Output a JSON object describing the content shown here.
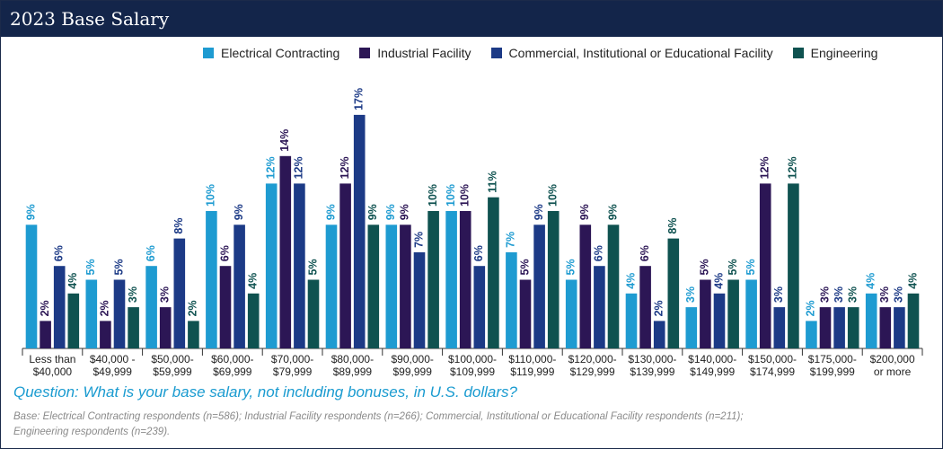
{
  "header": {
    "title": "2023 Base Salary"
  },
  "colors": {
    "header_bg": "#13254a",
    "question_text": "#1a9bd0",
    "note_text": "#8a8a8a"
  },
  "chart_data": {
    "type": "bar",
    "title": "2023 Base Salary",
    "xlabel": "",
    "ylabel": "",
    "ylim": [
      0,
      17
    ],
    "grid": false,
    "legend_position": "top-right",
    "value_suffix": "%",
    "categories": [
      [
        "Less than",
        "$40,000"
      ],
      [
        "$40,000 -",
        "$49,999"
      ],
      [
        "$50,000-",
        "$59,999"
      ],
      [
        "$60,000-",
        "$69,999"
      ],
      [
        "$70,000-",
        "$79,999"
      ],
      [
        "$80,000-",
        "$89,999"
      ],
      [
        "$90,000-",
        "$99,999"
      ],
      [
        "$100,000-",
        "$109,999"
      ],
      [
        "$110,000-",
        "$119,999"
      ],
      [
        "$120,000-",
        "$129,999"
      ],
      [
        "$130,000-",
        "$139,999"
      ],
      [
        "$140,000-",
        "$149,999"
      ],
      [
        "$150,000-",
        "$174,999"
      ],
      [
        "$175,000-",
        "$199,999"
      ],
      [
        "$200,000",
        "or more"
      ]
    ],
    "series": [
      {
        "name": "Electrical Contracting",
        "color": "#1e9bd1",
        "values": [
          9,
          5,
          6,
          10,
          12,
          9,
          9,
          10,
          7,
          5,
          4,
          3,
          5,
          2,
          4
        ]
      },
      {
        "name": "Industrial Facility",
        "color": "#2c1655",
        "values": [
          2,
          2,
          3,
          6,
          14,
          12,
          9,
          10,
          5,
          9,
          6,
          5,
          12,
          3,
          3
        ]
      },
      {
        "name": "Commercial, Institutional or Educational Facility",
        "color": "#1c3a86",
        "values": [
          6,
          5,
          8,
          9,
          12,
          17,
          7,
          6,
          9,
          6,
          2,
          4,
          3,
          3,
          3
        ]
      },
      {
        "name": "Engineering",
        "color": "#0f5250",
        "values": [
          4,
          3,
          2,
          4,
          5,
          9,
          10,
          11,
          10,
          9,
          8,
          5,
          12,
          3,
          4
        ]
      }
    ]
  },
  "question": "Question: What is your base salary, not including bonuses, in U.S. dollars?",
  "base_note": [
    "Base: Electrical Contracting respondents (n=586); Industrial Facility respondents (n=266); Commercial, Institutional or Educational Facility respondents (n=211);",
    "Engineering respondents (n=239)."
  ]
}
